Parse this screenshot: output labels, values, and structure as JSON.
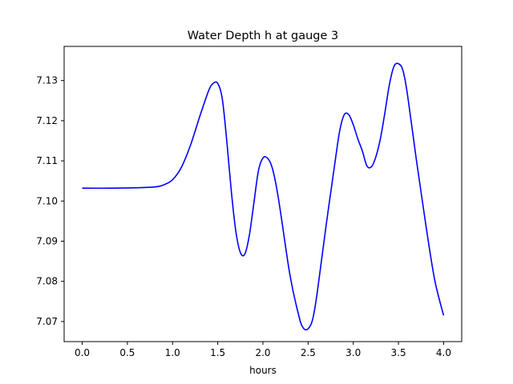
{
  "chart_data": {
    "type": "line",
    "title": "Water Depth h at gauge 3",
    "xlabel": "hours",
    "ylabel": "",
    "xlim": [
      -0.2,
      4.2
    ],
    "ylim": [
      7.065,
      7.1385
    ],
    "xticks": [
      0.0,
      0.5,
      1.0,
      1.5,
      2.0,
      2.5,
      3.0,
      3.5,
      4.0
    ],
    "xtick_labels": [
      "0.0",
      "0.5",
      "1.0",
      "1.5",
      "2.0",
      "2.5",
      "3.0",
      "3.5",
      "4.0"
    ],
    "yticks": [
      7.07,
      7.08,
      7.09,
      7.1,
      7.11,
      7.12,
      7.13
    ],
    "ytick_labels": [
      "7.07",
      "7.08",
      "7.09",
      "7.10",
      "7.11",
      "7.12",
      "7.13"
    ],
    "grid": false,
    "series": [
      {
        "name": "h",
        "color": "#0000ff",
        "x": [
          0.0,
          0.3,
          0.6,
          0.8,
          0.9,
          1.0,
          1.1,
          1.2,
          1.3,
          1.4,
          1.45,
          1.5,
          1.55,
          1.6,
          1.65,
          1.7,
          1.75,
          1.8,
          1.85,
          1.9,
          1.95,
          2.0,
          2.05,
          2.1,
          2.15,
          2.2,
          2.3,
          2.4,
          2.45,
          2.5,
          2.55,
          2.6,
          2.7,
          2.8,
          2.85,
          2.9,
          2.95,
          3.0,
          3.05,
          3.1,
          3.15,
          3.2,
          3.25,
          3.3,
          3.35,
          3.4,
          3.45,
          3.5,
          3.55,
          3.6,
          3.7,
          3.8,
          3.9,
          4.0
        ],
        "values": [
          7.1032,
          7.1032,
          7.1033,
          7.1035,
          7.104,
          7.1053,
          7.1085,
          7.114,
          7.121,
          7.1275,
          7.1293,
          7.1293,
          7.1255,
          7.115,
          7.1025,
          7.0925,
          7.0872,
          7.0868,
          7.0915,
          7.0995,
          7.1075,
          7.1107,
          7.1107,
          7.1085,
          7.1035,
          7.0965,
          7.0815,
          7.0712,
          7.0683,
          7.0682,
          7.0705,
          7.077,
          7.094,
          7.11,
          7.1175,
          7.1215,
          7.1215,
          7.119,
          7.1155,
          7.1125,
          7.1088,
          7.1085,
          7.111,
          7.1155,
          7.122,
          7.129,
          7.1335,
          7.1342,
          7.1325,
          7.1265,
          7.11,
          7.0945,
          7.0805,
          7.0715
        ]
      }
    ]
  }
}
